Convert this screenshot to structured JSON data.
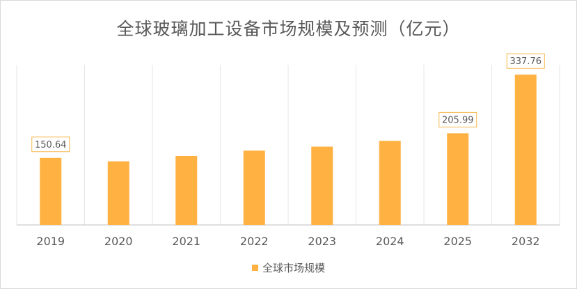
{
  "chart_data": {
    "type": "bar",
    "title": "全球玻璃加工设备市场规模及预测（亿元）",
    "categories": [
      "2019",
      "2020",
      "2021",
      "2022",
      "2023",
      "2024",
      "2025",
      "2032"
    ],
    "series": [
      {
        "name": "全球市场规模",
        "values": [
          150.64,
          143,
          155,
          167,
          176,
          189,
          205.99,
          337.76
        ],
        "data_labels": [
          "150.64",
          "",
          "",
          "",
          "",
          "",
          "205.99",
          "337.76"
        ]
      }
    ],
    "xlabel": "",
    "ylabel": "",
    "ylim": [
      0,
      360
    ],
    "grid": "vertical",
    "legend": "bottom",
    "colors": {
      "bar": "#FFB142",
      "label_border": "#F5B84A",
      "grid": "#e6e6e6",
      "axis": "#bfbfbf",
      "text": "#595959"
    }
  }
}
